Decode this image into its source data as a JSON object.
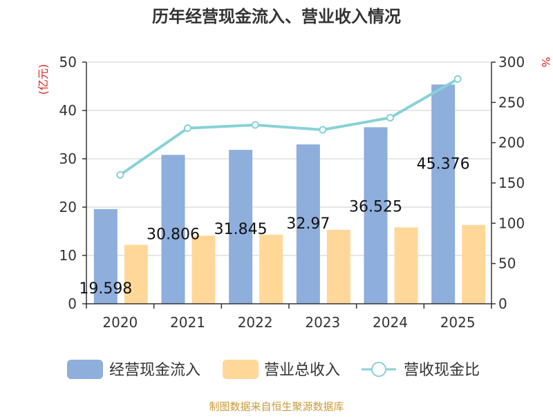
{
  "chart_data": {
    "type": "bar",
    "title": "历年经营现金流入、营业收入情况",
    "categories": [
      "2020",
      "2021",
      "2022",
      "2023",
      "2024",
      "2025"
    ],
    "left_axis": {
      "unit": "(亿元)",
      "ylim": [
        0,
        50
      ],
      "ticks": [
        0,
        10,
        20,
        30,
        40,
        50
      ]
    },
    "right_axis": {
      "unit": "%",
      "ylim": [
        0,
        300
      ],
      "ticks": [
        0,
        50,
        100,
        150,
        200,
        250,
        300
      ]
    },
    "series": [
      {
        "name": "经营现金流入",
        "type": "bar",
        "axis": "left",
        "color": "#8EAEDC",
        "values": [
          19.598,
          30.806,
          31.845,
          32.97,
          36.525,
          45.376
        ],
        "labels": [
          "19.598",
          "30.806",
          "31.845",
          "32.97",
          "36.525",
          "45.376"
        ]
      },
      {
        "name": "营业总收入",
        "type": "bar",
        "axis": "left",
        "color": "#FFD899",
        "values": [
          12.2,
          14.1,
          14.3,
          15.3,
          15.8,
          16.3
        ]
      },
      {
        "name": "营收现金比",
        "type": "line",
        "axis": "right",
        "color": "#86D2D7",
        "values": [
          160,
          218,
          222,
          216,
          231,
          279
        ]
      }
    ],
    "grid": true,
    "legend_position": "bottom",
    "source_note": "制图数据来自恒生聚源数据库"
  }
}
